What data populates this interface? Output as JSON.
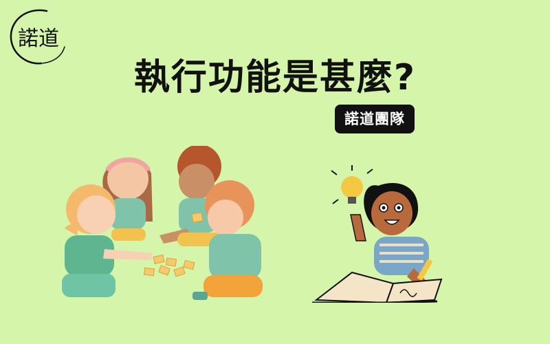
{
  "logo": {
    "text": "諾道",
    "icon": "brush-circle-logo"
  },
  "title": "執行功能是甚麼?",
  "badge": "諾道團隊",
  "illustrations": {
    "left": "children-playing-cards-illustration",
    "right": "girl-idea-lightbulb-illustration"
  },
  "colors": {
    "background": "#d4f5aa",
    "title": "#111111",
    "badge_bg": "#111111",
    "badge_text": "#ffffff"
  }
}
